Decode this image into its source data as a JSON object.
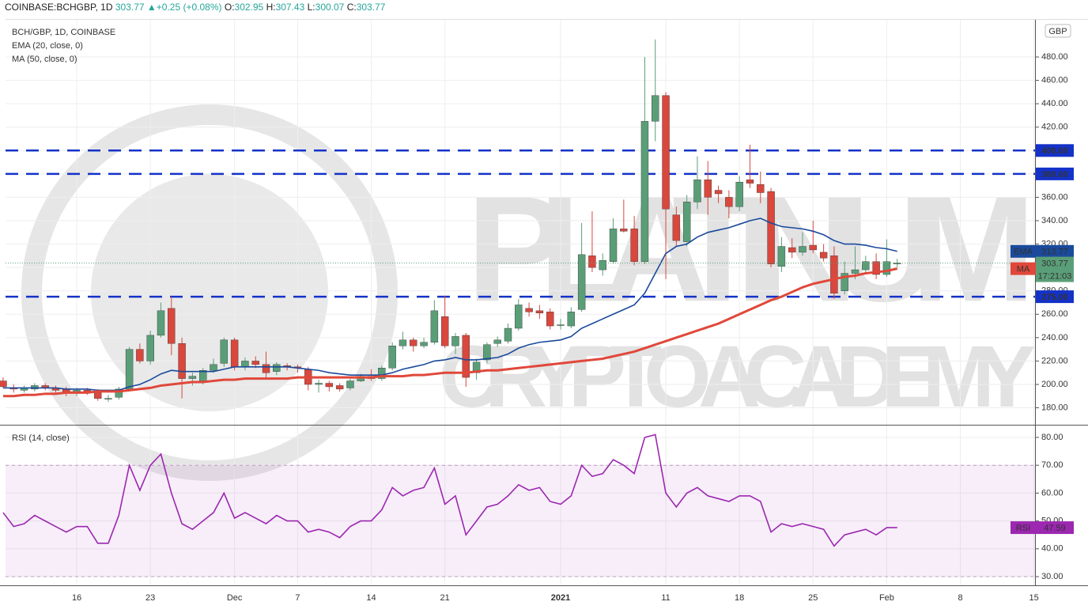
{
  "header": {
    "symbol": "COINBASE:BCHGBP, 1D",
    "last": 303.77,
    "change": "+0.25 (+0.08%)",
    "ohlc": [
      {
        "name": "O:",
        "value": 302.95
      },
      {
        "name": "H:",
        "value": 307.43
      },
      {
        "name": "L:",
        "value": 300.07
      },
      {
        "name": "C:",
        "value": 303.77
      }
    ]
  },
  "watermark": {
    "line1": "PLATINUM",
    "line2": "CRYPTO ACADEMY"
  },
  "chart_data": [
    {
      "type": "candlestick",
      "title": "BCH/GBP, 1D, COINBASE",
      "currency": "GBP",
      "up_color": "#5a9e78",
      "down_color": "#d9473d",
      "open": [
        203,
        197,
        195,
        196,
        199,
        197,
        196,
        193,
        195,
        194,
        188,
        189,
        196,
        230,
        220,
        242,
        265,
        235,
        205,
        203,
        212,
        218,
        238,
        215,
        220,
        217,
        211,
        216,
        215,
        213,
        200,
        201,
        199,
        197,
        203,
        207,
        205,
        214,
        233,
        238,
        233,
        236,
        258,
        233,
        242,
        210,
        221,
        235,
        237,
        248,
        265,
        263,
        262,
        251,
        250,
        264,
        310,
        298,
        305,
        333,
        333,
        305,
        425,
        447,
        345,
        322,
        356,
        375,
        366,
        360,
        352,
        375,
        371,
        365,
        301,
        317,
        313,
        319,
        313,
        310,
        280,
        295,
        298,
        305,
        294,
        302.95
      ],
      "high": [
        206,
        200,
        199,
        201,
        201,
        199,
        198,
        197,
        197,
        196,
        191,
        198,
        232,
        235,
        246,
        270,
        275,
        240,
        210,
        214,
        222,
        240,
        240,
        223,
        224,
        228,
        219,
        218,
        217,
        215,
        204,
        203,
        201,
        205,
        209,
        213,
        216,
        236,
        245,
        240,
        240,
        272,
        276,
        244,
        244,
        222,
        236,
        241,
        252,
        273,
        270,
        268,
        265,
        256,
        266,
        338,
        348,
        312,
        342,
        358,
        344,
        480,
        495,
        450,
        352,
        362,
        395,
        391,
        370,
        366,
        378,
        405,
        382,
        368,
        326,
        325,
        330,
        340,
        320,
        318,
        305,
        318,
        310,
        312,
        324,
        307.43
      ],
      "low": [
        197,
        193,
        193,
        194,
        195,
        193,
        190,
        190,
        191,
        186,
        185,
        187,
        194,
        218,
        217,
        240,
        225,
        188,
        199,
        200,
        210,
        215,
        212,
        212,
        214,
        206,
        208,
        212,
        210,
        195,
        193,
        194,
        194,
        195,
        202,
        203,
        203,
        212,
        230,
        228,
        231,
        234,
        231,
        226,
        198,
        204,
        218,
        232,
        235,
        246,
        258,
        256,
        247,
        247,
        248,
        262,
        296,
        293,
        303,
        330,
        302,
        303,
        408,
        290,
        318,
        318,
        350,
        345,
        355,
        342,
        348,
        368,
        355,
        300,
        296,
        308,
        310,
        312,
        305,
        273,
        277,
        290,
        295,
        290,
        292,
        300.07
      ],
      "close": [
        198,
        196,
        197,
        199,
        197,
        195,
        193,
        195,
        193,
        188,
        188,
        196,
        230,
        220,
        242,
        263,
        235,
        205,
        207,
        212,
        217,
        238,
        215,
        220,
        217,
        210,
        217,
        215,
        214,
        200,
        201,
        198,
        196,
        203,
        207,
        205,
        214,
        233,
        238,
        233,
        236,
        263,
        233,
        241,
        206,
        219,
        234,
        238,
        248,
        268,
        262,
        261,
        250,
        251,
        262,
        311,
        300,
        306,
        333,
        331,
        305,
        425,
        447,
        350,
        323,
        356,
        375,
        360,
        363,
        352,
        373,
        372,
        364,
        303,
        318,
        313,
        318,
        315,
        308,
        278,
        295,
        298,
        305,
        294,
        305,
        303.77
      ],
      "series": [
        {
          "name": "EMA (20, close, 0)",
          "tag": "EMA",
          "color": "#1a4a9c",
          "values": [
            197,
            197,
            197,
            197,
            197,
            197,
            196,
            196,
            196,
            195,
            195,
            195,
            198,
            200,
            204,
            209,
            212,
            211,
            211,
            211,
            211,
            213,
            215,
            215,
            215,
            215,
            215,
            215,
            214,
            213,
            212,
            210,
            209,
            208,
            208,
            208,
            208,
            210,
            213,
            215,
            217,
            220,
            221,
            223,
            221,
            221,
            222,
            223,
            226,
            231,
            234,
            236,
            237,
            238,
            241,
            248,
            252,
            256,
            260,
            264,
            268,
            278,
            295,
            312,
            318,
            320,
            326,
            330,
            332,
            334,
            337,
            340,
            342,
            338,
            335,
            334,
            333,
            331,
            328,
            323,
            320,
            320,
            319,
            317,
            316,
            313.77
          ]
        },
        {
          "name": "MA (50, close, 0)",
          "tag": "MA",
          "color": "#e0483a",
          "values": [
            190,
            190,
            191,
            191,
            192,
            192,
            193,
            193,
            193,
            194,
            194,
            194,
            195,
            196,
            197,
            199,
            200,
            201,
            202,
            202,
            203,
            204,
            204,
            205,
            205,
            205,
            205,
            205,
            206,
            206,
            206,
            206,
            206,
            206,
            206,
            206,
            207,
            207,
            207,
            208,
            208,
            209,
            210,
            210,
            210,
            211,
            212,
            212,
            213,
            214,
            215,
            216,
            217,
            218,
            219,
            220,
            221,
            222,
            224,
            226,
            228,
            231,
            234,
            237,
            240,
            243,
            246,
            249,
            252,
            256,
            260,
            264,
            268,
            272,
            275,
            279,
            283,
            286,
            288,
            290,
            292,
            293,
            295,
            296,
            297,
            298.98
          ]
        }
      ],
      "levels": [
        {
          "value": 400,
          "label": "400.00"
        },
        {
          "value": 380,
          "label": "380.00"
        },
        {
          "value": 275,
          "label": "275.00"
        }
      ],
      "level_color": "#1432c8",
      "countdown": "17:21:03",
      "xlim": [
        0.23,
        98.1
      ],
      "xticks": [
        {
          "value": 7,
          "label": "16"
        },
        {
          "value": 14,
          "label": "23"
        },
        {
          "value": 22,
          "label": "Dec"
        },
        {
          "value": 28,
          "label": "7"
        },
        {
          "value": 35,
          "label": "14"
        },
        {
          "value": 42,
          "label": "21"
        },
        {
          "value": 53,
          "label": "2021"
        },
        {
          "value": 63,
          "label": "11"
        },
        {
          "value": 70,
          "label": "18"
        },
        {
          "value": 77,
          "label": "25"
        },
        {
          "value": 84,
          "label": "Feb"
        },
        {
          "value": 91,
          "label": "8"
        },
        {
          "value": 98,
          "label": "15"
        }
      ],
      "ylim": [
        165.5,
        511.8
      ],
      "yticks": [
        {
          "value": 180,
          "label": "180.00"
        },
        {
          "value": 200,
          "label": "200.00"
        },
        {
          "value": 220,
          "label": "220.00"
        },
        {
          "value": 240,
          "label": "240.00"
        },
        {
          "value": 260,
          "label": "260.00"
        },
        {
          "value": 280,
          "label": "280.00"
        },
        {
          "value": 300,
          "label": "300.00"
        },
        {
          "value": 320,
          "label": "320.00"
        },
        {
          "value": 340,
          "label": "340.00"
        },
        {
          "value": 360,
          "label": "360.00"
        },
        {
          "value": 380,
          "label": "380.00"
        },
        {
          "value": 400,
          "label": "400.00"
        },
        {
          "value": 420,
          "label": "420.00"
        },
        {
          "value": 440,
          "label": "440.00"
        },
        {
          "value": 460,
          "label": "460.00"
        },
        {
          "value": 480,
          "label": "480.00"
        }
      ],
      "grid": true
    },
    {
      "type": "line",
      "title": "RSI (14, close)",
      "series": [
        {
          "name": "RSI",
          "color": "#9c27b0",
          "values": [
            53,
            48,
            49,
            52,
            50,
            48,
            46,
            48,
            48,
            42,
            42,
            52,
            70,
            61,
            70,
            74,
            60,
            49,
            47,
            50,
            53,
            60,
            51,
            53,
            51,
            49,
            52,
            50,
            50,
            46,
            47,
            46,
            44,
            48,
            50,
            50,
            54,
            62,
            59,
            61,
            62,
            69,
            56,
            59,
            45,
            50,
            55,
            56,
            59,
            63,
            61,
            62,
            57,
            56,
            59,
            70,
            66,
            67,
            72,
            70,
            67,
            80,
            81,
            60,
            55,
            60,
            62,
            59,
            58,
            57,
            59,
            59,
            57,
            46,
            49,
            48,
            49,
            48,
            47,
            41,
            45,
            46,
            47,
            45,
            47.59,
            47.59
          ]
        }
      ],
      "band": [
        30,
        70
      ],
      "ylim": [
        26.88,
        84.26
      ],
      "yticks": [
        {
          "value": 30,
          "label": "30.00"
        },
        {
          "value": 40,
          "label": "40.00"
        },
        {
          "value": 50,
          "label": "50.00"
        },
        {
          "value": 60,
          "label": "60.00"
        },
        {
          "value": 70,
          "label": "70.00"
        },
        {
          "value": 80,
          "label": "80.00"
        }
      ],
      "grid": true
    }
  ]
}
